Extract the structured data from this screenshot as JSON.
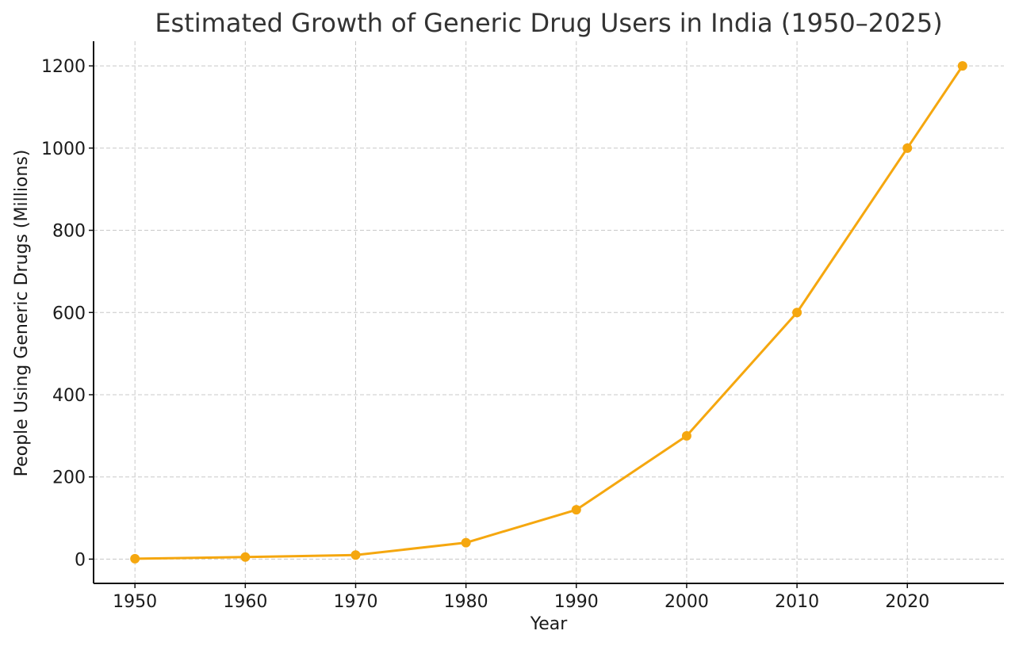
{
  "chart_data": {
    "type": "line",
    "title": "Estimated Growth of Generic Drug Users in India (1950–2025)",
    "xlabel": "Year",
    "ylabel": "People Using Generic Drugs (Millions)",
    "x": [
      1950,
      1960,
      1970,
      1980,
      1990,
      2000,
      2010,
      2020,
      2025
    ],
    "series": [
      {
        "values": [
          1,
          5,
          10,
          40,
          120,
          300,
          600,
          1000,
          1200
        ]
      }
    ],
    "xticks": [
      1950,
      1960,
      1970,
      1980,
      1990,
      2000,
      2010,
      2020
    ],
    "yticks": [
      0,
      200,
      400,
      600,
      800,
      1000,
      1200
    ],
    "xlim": [
      1946.25,
      2028.75
    ],
    "ylim": [
      -59,
      1260
    ],
    "grid": true,
    "line_color": "#F5A70F"
  }
}
